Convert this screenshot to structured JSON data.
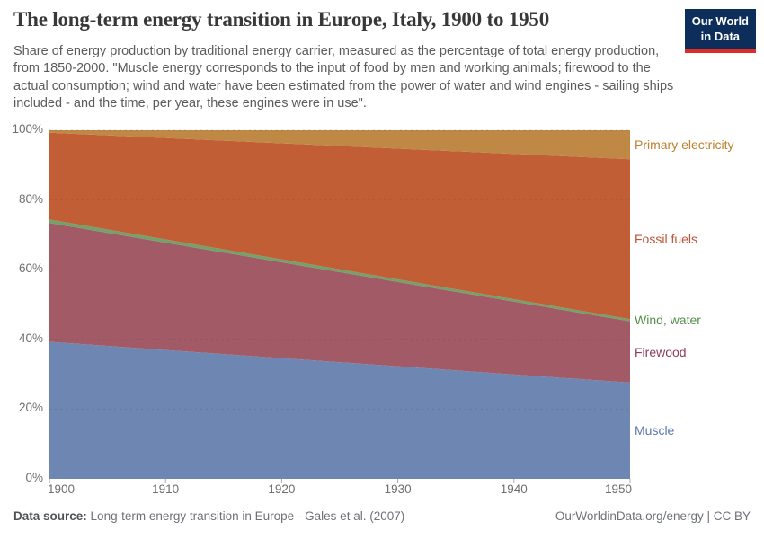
{
  "header": {
    "title": "The long-term energy transition in Europe, Italy, 1900 to 1950",
    "subtitle": "Share of energy production by traditional energy carrier, measured as the percentage of total energy production, from 1850-2000. \"Muscle energy corresponds to the input of food by men and working animals; firewood to the actual consumption; wind and water have been estimated from the power of water and wind engines - sailing ships included - and the time, per year, these engines were in use\".",
    "logo": {
      "line1": "Our World",
      "line2": "in Data",
      "bg_color": "#0d2e5b",
      "accent_color": "#dc2d26"
    }
  },
  "footer": {
    "datasource_label": "Data source:",
    "datasource_value": "Long-term energy transition in Europe - Gales et al. (2007)",
    "credit": "OurWorldinData.org/energy | CC BY"
  },
  "chart_data": {
    "type": "area",
    "stacked": true,
    "title": "The long-term energy transition in Europe, Italy, 1900 to 1950",
    "x": [
      1900,
      1950
    ],
    "xlim": [
      1900,
      1950
    ],
    "ylim": [
      0,
      100
    ],
    "y_unit": "%",
    "grid": true,
    "legend_position": "right",
    "xticks": [
      1900,
      1910,
      1920,
      1930,
      1940,
      1950
    ],
    "yticks": [
      0,
      20,
      40,
      60,
      80,
      100
    ],
    "series": [
      {
        "name": "Muscle",
        "values": [
          39.3,
          27.6
        ],
        "color": "#6d87b2",
        "label_color": "#5878ad"
      },
      {
        "name": "Firewood",
        "values": [
          34.1,
          17.6
        ],
        "color": "#a25a66",
        "label_color": "#8d3c52"
      },
      {
        "name": "Wind, water",
        "values": [
          1.0,
          0.6
        ],
        "color": "#74a06a",
        "label_color": "#548f4b"
      },
      {
        "name": "Fossil fuels",
        "values": [
          24.9,
          45.9
        ],
        "color": "#c25e35",
        "label_color": "#bc5336"
      },
      {
        "name": "Primary electricity",
        "values": [
          0.7,
          8.3
        ],
        "color": "#c08845",
        "label_color": "#bd812f"
      }
    ],
    "gridline_color": "#4a4a4a",
    "axis_color": "#cfcfcf",
    "tick_color": "#a8a8a8"
  }
}
